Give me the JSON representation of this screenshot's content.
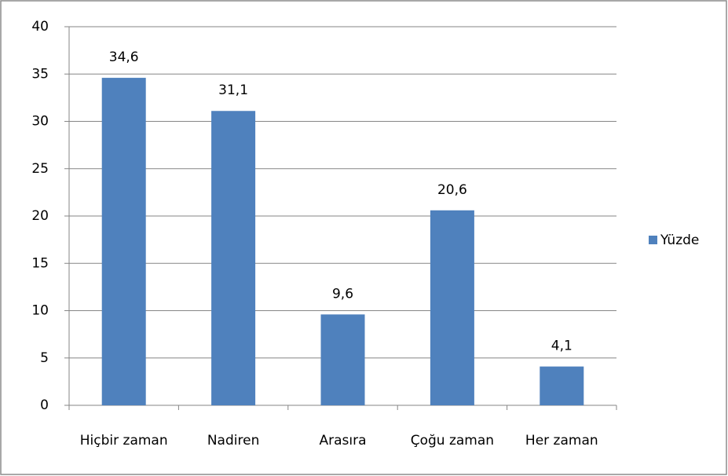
{
  "chart_data": {
    "type": "bar",
    "categories": [
      "Hiçbir zaman",
      "Nadiren",
      "Arasıra",
      "Çoğu zaman",
      "Her zaman"
    ],
    "series": [
      {
        "name": "Yüzde",
        "color": "#4f81bd",
        "values": [
          34.6,
          31.1,
          9.6,
          20.6,
          4.1
        ],
        "value_labels": [
          "34,6",
          "31,1",
          "9,6",
          "20,6",
          "4,1"
        ]
      }
    ],
    "ylim": [
      0,
      40
    ],
    "yticks": [
      0,
      5,
      10,
      15,
      20,
      25,
      30,
      35,
      40
    ],
    "grid": true,
    "legend": "right"
  }
}
